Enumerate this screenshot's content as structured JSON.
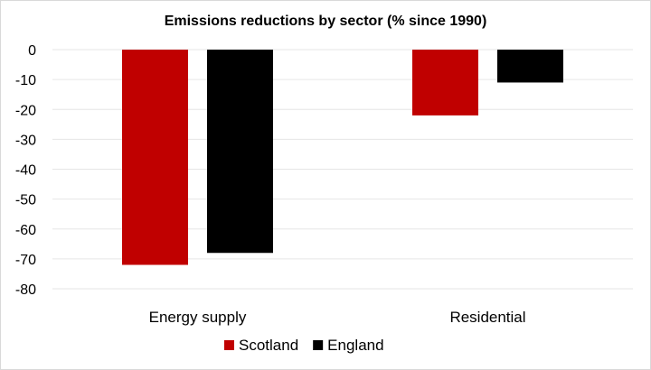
{
  "chart_data": {
    "type": "bar",
    "title": "Emissions reductions by sector (% since 1990)",
    "categories": [
      "Energy supply",
      "Residential"
    ],
    "series": [
      {
        "name": "Scotland",
        "values": [
          -72,
          -22
        ],
        "color": "#c00000"
      },
      {
        "name": "England",
        "values": [
          -68,
          -11
        ],
        "color": "#000000"
      }
    ],
    "ylim": [
      -80,
      0
    ],
    "yticks": [
      0,
      -10,
      -20,
      -30,
      -40,
      -50,
      -60,
      -70,
      -80
    ],
    "xlabel": "",
    "ylabel": "",
    "grid": true,
    "legend": "bottom"
  }
}
